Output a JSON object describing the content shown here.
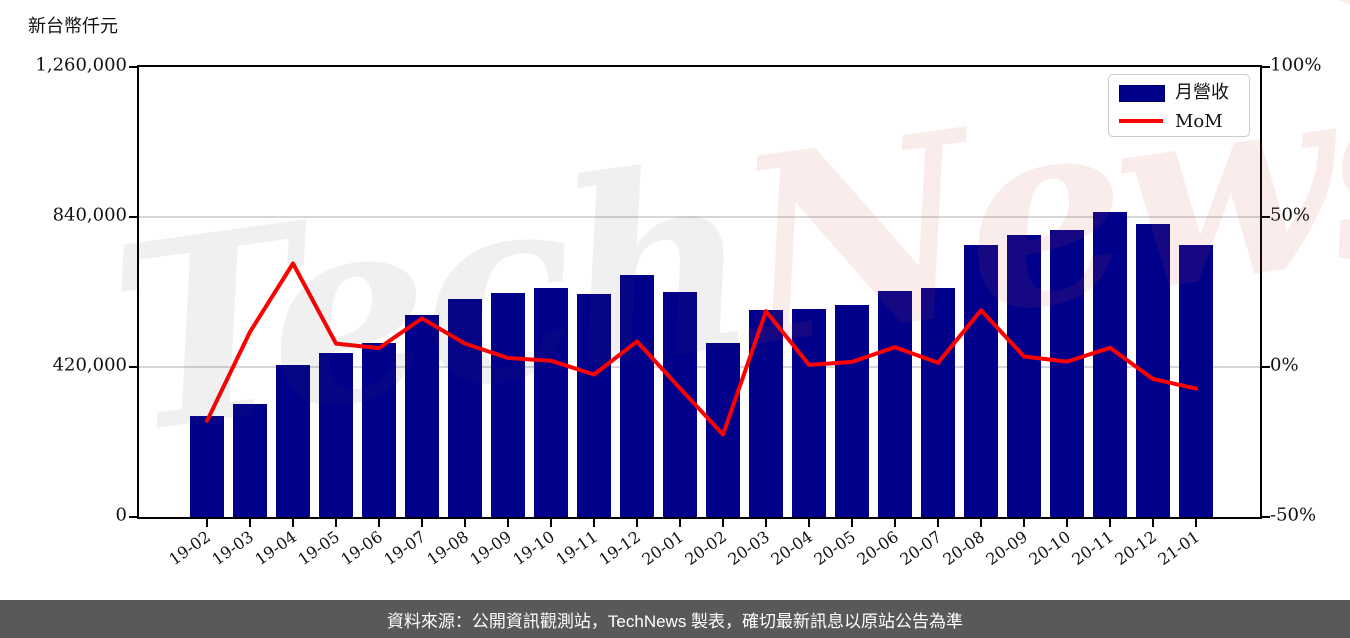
{
  "page": {
    "unit_label": "新台幣仟元",
    "footer_text": "資料來源：公開資訊觀測站，TechNews 製表，確切最新訊息以原站公告為準",
    "watermark": {
      "part1": "Tech",
      "part2": "News"
    }
  },
  "legend": {
    "bar_label": "月營收",
    "line_label": "MoM",
    "position": "top-right"
  },
  "chart_data": {
    "type": "bar",
    "title": "",
    "xlabel": "",
    "ylabel_left": "新台幣仟元",
    "ylabel_right": "%",
    "grid": "horizontal",
    "categories": [
      "19-02",
      "19-03",
      "19-04",
      "19-05",
      "19-06",
      "19-07",
      "19-08",
      "19-09",
      "19-10",
      "19-11",
      "19-12",
      "20-01",
      "20-02",
      "20-03",
      "20-04",
      "20-05",
      "20-06",
      "20-07",
      "20-08",
      "20-09",
      "20-10",
      "20-11",
      "20-12",
      "21-01"
    ],
    "series": [
      {
        "name": "月營收",
        "type": "bar",
        "axis": "left",
        "color": "#00008B",
        "values": [
          283000,
          316000,
          425000,
          458000,
          487000,
          566000,
          610000,
          628000,
          641000,
          625000,
          678000,
          630000,
          488000,
          579000,
          583000,
          593000,
          632000,
          641000,
          762000,
          789000,
          803000,
          854000,
          820000,
          761000
        ]
      },
      {
        "name": "MoM",
        "type": "line",
        "axis": "right",
        "color": "#FF0000",
        "values_pct": [
          -18.0,
          11.7,
          34.5,
          7.8,
          6.3,
          16.2,
          7.8,
          3.0,
          2.1,
          -2.5,
          8.5,
          -7.1,
          -22.5,
          18.6,
          0.7,
          1.7,
          6.6,
          1.4,
          18.9,
          3.5,
          1.8,
          6.4,
          -4.0,
          -7.2
        ]
      }
    ],
    "left_axis": {
      "min": 0,
      "max": 1260000,
      "tick_values": [
        0,
        420000,
        840000,
        1260000
      ],
      "tick_labels": [
        "0",
        "420,000",
        "840,000",
        "1,260,000"
      ]
    },
    "right_axis": {
      "min": -50,
      "max": 100,
      "tick_values": [
        -50,
        0,
        50,
        100
      ],
      "tick_labels": [
        "-50%",
        "0%",
        "50%",
        "100%"
      ]
    },
    "colors": {
      "bar": "#00008B",
      "line": "#FF0000",
      "gridline": "#d7d7d7",
      "footer_bg": "#595959"
    }
  }
}
